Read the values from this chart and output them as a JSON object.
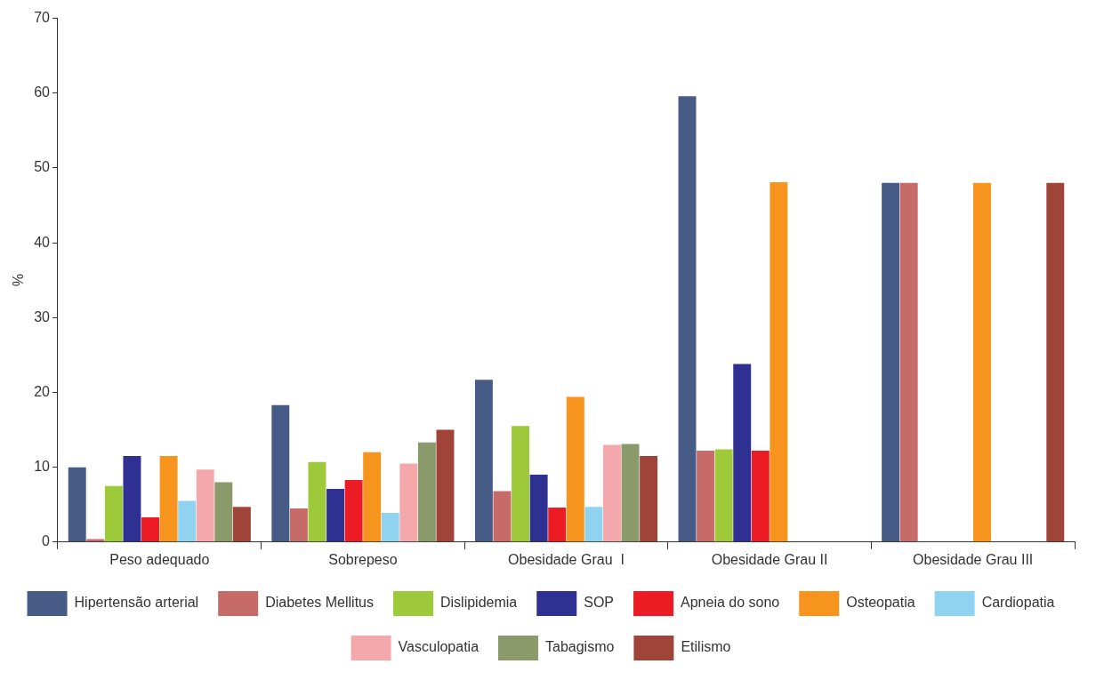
{
  "chart_data": {
    "type": "bar",
    "ylabel": "%",
    "categories": [
      "Peso adequado",
      "Sobrepeso",
      "Obesidade Grau  I",
      "Obesidade Grau II",
      "Obesidade Grau III"
    ],
    "ylim": [
      0,
      70
    ],
    "yticks": [
      0,
      10,
      20,
      30,
      40,
      50,
      60,
      70
    ],
    "grid": false,
    "legend": "bottom",
    "series": [
      {
        "name": "Hipertensão arterial",
        "color": "#475b87",
        "values": [
          10,
          18.3,
          21.7,
          59.6,
          48
        ]
      },
      {
        "name": "Diabetes Mellitus",
        "color": "#c76b69",
        "values": [
          0.4,
          4.5,
          6.8,
          12.2,
          48
        ]
      },
      {
        "name": "Dislipidemia",
        "color": "#9dc93b",
        "values": [
          7.5,
          10.7,
          15.5,
          12.4,
          0
        ]
      },
      {
        "name": "SOP",
        "color": "#2e3192",
        "values": [
          11.5,
          7.1,
          9,
          23.8,
          0
        ]
      },
      {
        "name": "Apneia do sono",
        "color": "#ed1c24",
        "values": [
          3.3,
          8.3,
          4.6,
          12.2,
          0
        ]
      },
      {
        "name": "Osteopatia",
        "color": "#f7941d",
        "values": [
          11.5,
          12,
          19.4,
          48.1,
          48
        ]
      },
      {
        "name": "Cardiopatia",
        "color": "#8fd3f0",
        "values": [
          5.5,
          3.9,
          4.7,
          0,
          0
        ]
      },
      {
        "name": "Vasculopatia",
        "color": "#f5a8ab",
        "values": [
          9.7,
          10.5,
          13,
          0,
          0
        ]
      },
      {
        "name": "Tabagismo",
        "color": "#8a9a6a",
        "values": [
          8,
          13.3,
          13.1,
          0,
          0
        ]
      },
      {
        "name": "Etilismo",
        "color": "#a0443a",
        "values": [
          4.7,
          15,
          11.5,
          0,
          48
        ]
      }
    ]
  }
}
